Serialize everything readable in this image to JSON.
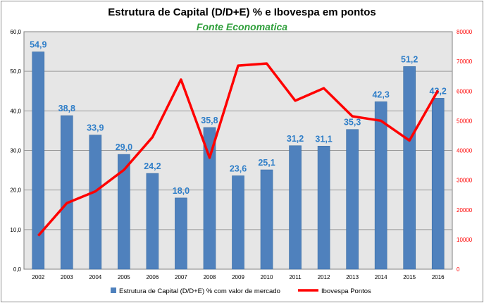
{
  "chart_data": {
    "type": "bar",
    "title": "Estrutura de Capital (D/D+E) % e Ibovespa em pontos",
    "subtitle": "Fonte Economatica",
    "categories": [
      "2002",
      "2003",
      "2004",
      "2005",
      "2006",
      "2007",
      "2008",
      "2009",
      "2010",
      "2011",
      "2012",
      "2013",
      "2014",
      "2015",
      "2016"
    ],
    "series": [
      {
        "name": "Estrutura de Capital (D/D+E) % com valor de mercado",
        "type": "bar",
        "axis": "left",
        "color": "#4f81bd",
        "values": [
          54.9,
          38.8,
          33.9,
          29.0,
          24.2,
          18.0,
          35.8,
          23.6,
          25.1,
          31.2,
          31.1,
          35.3,
          42.3,
          51.2,
          43.2
        ],
        "data_labels": [
          "54,9",
          "38,8",
          "33,9",
          "29,0",
          "24,2",
          "18,0",
          "35,8",
          "23,6",
          "25,1",
          "31,2",
          "31,1",
          "35,3",
          "42,3",
          "51,2",
          "43,2"
        ]
      },
      {
        "name": "Ibovespa Pontos",
        "type": "line",
        "axis": "right",
        "color": "#ff0000",
        "values": [
          11268,
          22236,
          26196,
          33455,
          44473,
          63886,
          37550,
          68588,
          69305,
          56754,
          60952,
          51507,
          50007,
          43350,
          60227
        ]
      }
    ],
    "y_left": {
      "range": [
        0,
        60
      ],
      "ticks": [
        "0,0",
        "10,0",
        "20,0",
        "30,0",
        "40,0",
        "50,0",
        "60,0"
      ]
    },
    "y_right": {
      "range": [
        0,
        80000
      ],
      "ticks": [
        "0",
        "10000",
        "20000",
        "30000",
        "40000",
        "50000",
        "60000",
        "70000",
        "80000"
      ],
      "color": "#ff0000"
    },
    "grid": true,
    "legend_position": "bottom"
  }
}
